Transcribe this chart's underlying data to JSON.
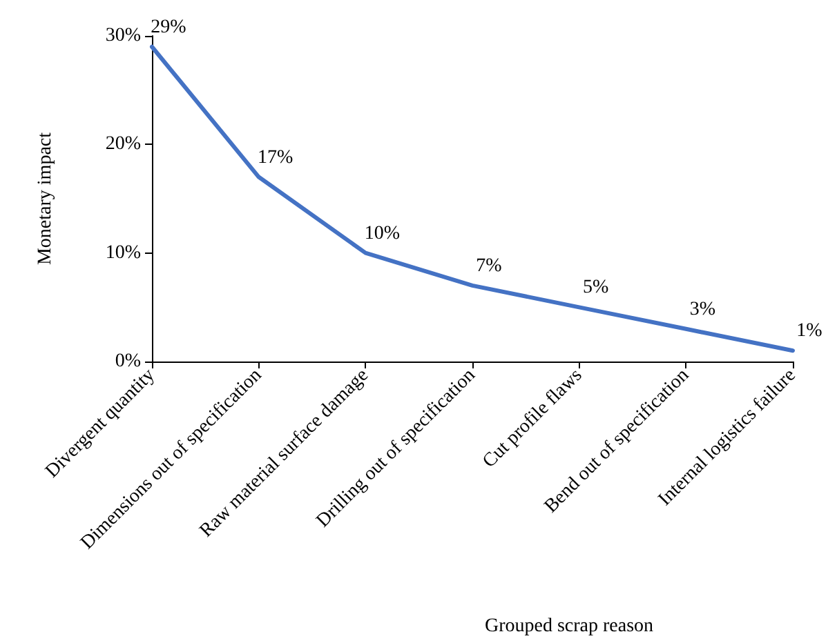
{
  "chart_data": {
    "type": "line",
    "xlabel": "Grouped scrap reason",
    "ylabel": "Monetary impact",
    "categories": [
      "Divergent quantity",
      "Dimensions out of specification",
      "Raw material surface damage",
      "Drilling out of specification",
      "Cut profile flaws",
      "Bend out of specification",
      "Internal logistics failure"
    ],
    "series": [
      {
        "color": "#4472c4",
        "values": [
          29,
          17,
          10,
          7,
          5,
          3,
          1
        ],
        "value_labels": [
          "29%",
          "17%",
          "10%",
          "7%",
          "5%",
          "3%",
          "1%"
        ]
      }
    ],
    "ylim": [
      0,
      30
    ],
    "yticks": [
      {
        "value": 0,
        "label": "0%"
      },
      {
        "value": 10,
        "label": "10%"
      },
      {
        "value": 20,
        "label": "20%"
      },
      {
        "value": 30,
        "label": "30%"
      }
    ],
    "grid": false,
    "marker": "none",
    "line_style": "solid"
  }
}
